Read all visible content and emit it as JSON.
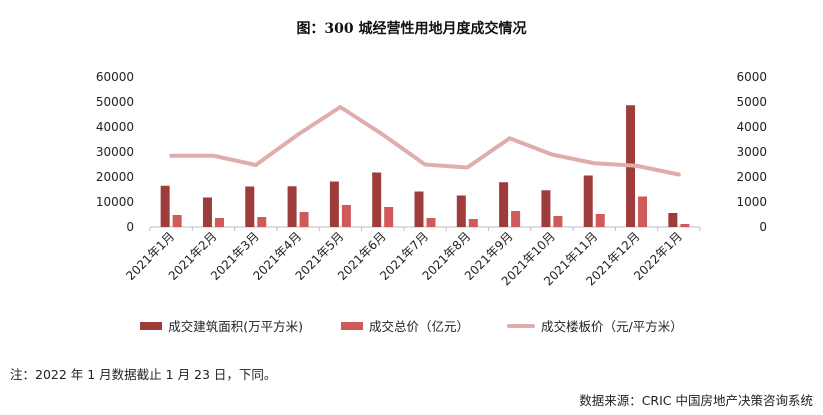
{
  "chart_data": {
    "type": "bar",
    "title": "图：300 城经营性用地月度成交情况",
    "categories": [
      "2021年1月",
      "2021年2月",
      "2021年3月",
      "2021年4月",
      "2021年5月",
      "2021年6月",
      "2021年7月",
      "2021年8月",
      "2021年9月",
      "2021年10月",
      "2021年11月",
      "2021年12月",
      "2022年1月"
    ],
    "y_left": {
      "ticks": [
        "0",
        "10000",
        "20000",
        "30000",
        "40000",
        "50000",
        "60000"
      ],
      "lim": [
        0,
        60000
      ]
    },
    "y_right": {
      "ticks": [
        "0",
        "1000",
        "2000",
        "3000",
        "4000",
        "5000",
        "6000"
      ],
      "lim": [
        0,
        6000
      ]
    },
    "series": [
      {
        "name": "成交建筑面积(万平方米)",
        "type": "bar",
        "axis": "left",
        "color": "#9e3b3b",
        "values": [
          16500,
          11800,
          16200,
          16300,
          18200,
          21800,
          14200,
          12600,
          17900,
          14700,
          20600,
          48700,
          5600
        ]
      },
      {
        "name": "成交总价（亿元）",
        "type": "bar",
        "axis": "left",
        "color": "#d05a5a",
        "values": [
          4800,
          3600,
          4000,
          6000,
          8800,
          8000,
          3600,
          3200,
          6400,
          4400,
          5200,
          12200,
          1200
        ]
      },
      {
        "name": "成交楼板价（元/平方米）",
        "type": "line",
        "axis": "right",
        "color": "#e0acac",
        "values": [
          2850,
          2850,
          2480,
          3700,
          4800,
          3700,
          2500,
          2380,
          3550,
          2900,
          2550,
          2450,
          2100
        ]
      }
    ],
    "legend_position": "bottom",
    "grid": false
  },
  "note": "注：2022 年 1 月数据截止 1 月 23 日，下同。",
  "source": "数据来源：CRIC 中国房地产决策咨询系统"
}
